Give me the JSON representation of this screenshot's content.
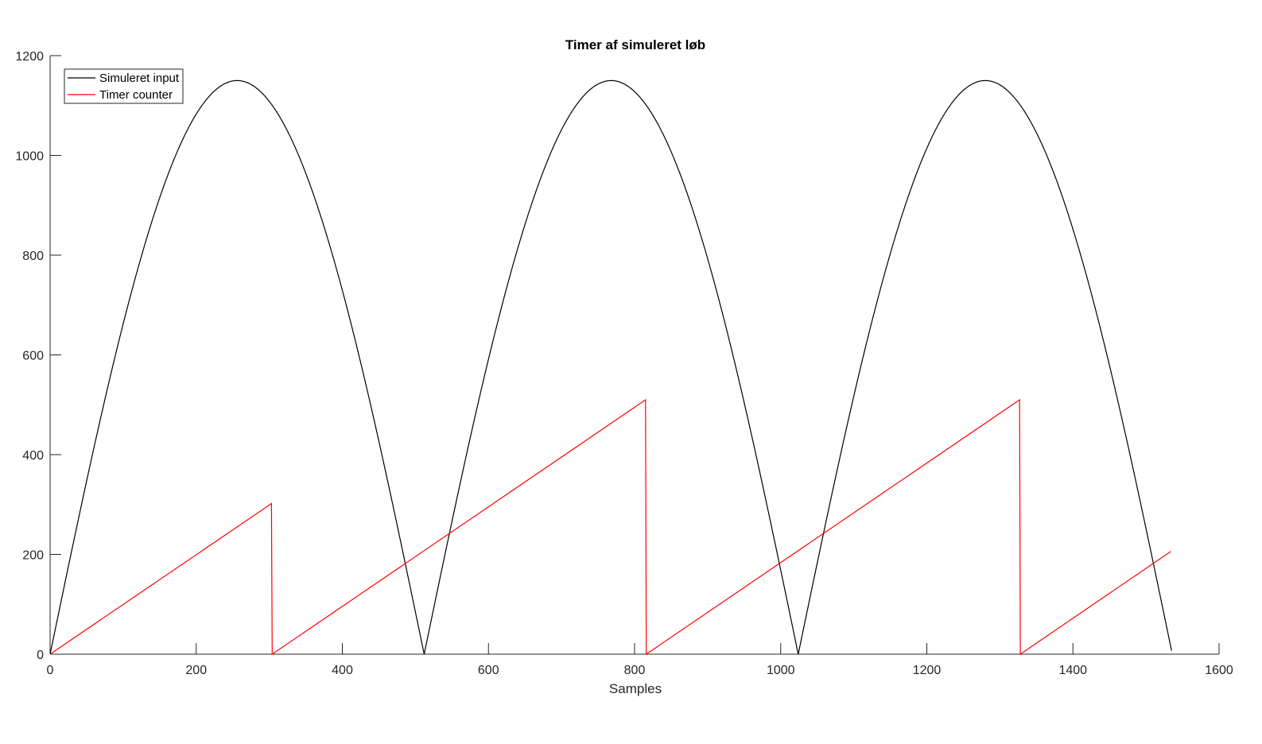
{
  "chart_data": {
    "type": "line",
    "title": "Timer af simuleret løb",
    "xlabel": "Samples",
    "ylabel": "",
    "xlim": [
      0,
      1600
    ],
    "ylim": [
      0,
      1200
    ],
    "xticks": [
      0,
      200,
      400,
      600,
      800,
      1000,
      1200,
      1400,
      1600
    ],
    "yticks": [
      0,
      200,
      400,
      600,
      800,
      1000,
      1200
    ],
    "grid": false,
    "legend_position": "top-left",
    "series": [
      {
        "name": "Simuleret input",
        "color": "#000000",
        "shape": "abs-sine",
        "amplitude": 1150,
        "period": 512,
        "x_range": [
          0,
          1535
        ]
      },
      {
        "name": "Timer counter",
        "color": "#ff0000",
        "shape": "sawtooth",
        "points": [
          [
            0,
            0
          ],
          [
            303,
            302
          ],
          [
            304,
            0
          ],
          [
            815,
            510
          ],
          [
            816,
            0
          ],
          [
            1327,
            510
          ],
          [
            1328,
            0
          ],
          [
            1534,
            206
          ]
        ]
      }
    ]
  }
}
